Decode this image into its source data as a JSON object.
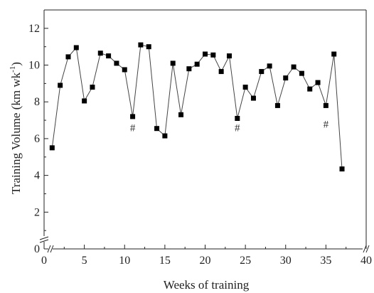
{
  "chart_data": {
    "type": "line",
    "title": "",
    "xlabel": "Weeks of training",
    "ylabel_main": "Training Volume (km wk",
    "ylabel_sup": "-1",
    "ylabel_close": ")",
    "xlim": [
      0,
      40
    ],
    "ylim": [
      0,
      13
    ],
    "grid": false,
    "legend": "none",
    "axis_breaks": [
      "x",
      "y"
    ],
    "x_ticks": [
      0,
      5,
      10,
      15,
      20,
      25,
      30,
      35,
      40
    ],
    "y_ticks": [
      0,
      2,
      4,
      6,
      8,
      10,
      12
    ],
    "series": [
      {
        "color": "#000000",
        "marker": "square",
        "points": [
          {
            "x": 1,
            "y": 5.5
          },
          {
            "x": 2,
            "y": 8.9
          },
          {
            "x": 3,
            "y": 10.45
          },
          {
            "x": 4,
            "y": 10.95
          },
          {
            "x": 5,
            "y": 8.05
          },
          {
            "x": 6,
            "y": 8.8
          },
          {
            "x": 7,
            "y": 10.65
          },
          {
            "x": 8,
            "y": 10.5
          },
          {
            "x": 9,
            "y": 10.1
          },
          {
            "x": 10,
            "y": 9.75
          },
          {
            "x": 11,
            "y": 7.2
          },
          {
            "x": 12,
            "y": 11.1
          },
          {
            "x": 13,
            "y": 11.0
          },
          {
            "x": 14,
            "y": 6.55
          },
          {
            "x": 15,
            "y": 6.15
          },
          {
            "x": 16,
            "y": 10.1
          },
          {
            "x": 17,
            "y": 7.3
          },
          {
            "x": 18,
            "y": 9.8
          },
          {
            "x": 19,
            "y": 10.05
          },
          {
            "x": 20,
            "y": 10.6
          },
          {
            "x": 21,
            "y": 10.55
          },
          {
            "x": 22,
            "y": 9.65
          },
          {
            "x": 23,
            "y": 10.5
          },
          {
            "x": 24,
            "y": 7.1
          },
          {
            "x": 25,
            "y": 8.8
          },
          {
            "x": 26,
            "y": 8.2
          },
          {
            "x": 27,
            "y": 9.65
          },
          {
            "x": 28,
            "y": 9.95
          },
          {
            "x": 29,
            "y": 7.8
          },
          {
            "x": 30,
            "y": 9.3
          },
          {
            "x": 31,
            "y": 9.9
          },
          {
            "x": 32,
            "y": 9.55
          },
          {
            "x": 33,
            "y": 8.7
          },
          {
            "x": 34,
            "y": 9.05
          },
          {
            "x": 35,
            "y": 7.8
          },
          {
            "x": 36,
            "y": 10.6
          },
          {
            "x": 37,
            "y": 4.35
          }
        ]
      }
    ],
    "annotations": [
      {
        "text": "#",
        "x": 11,
        "y": 6.4
      },
      {
        "text": "#",
        "x": 24,
        "y": 6.4
      },
      {
        "text": "#",
        "x": 35,
        "y": 6.6
      }
    ]
  }
}
